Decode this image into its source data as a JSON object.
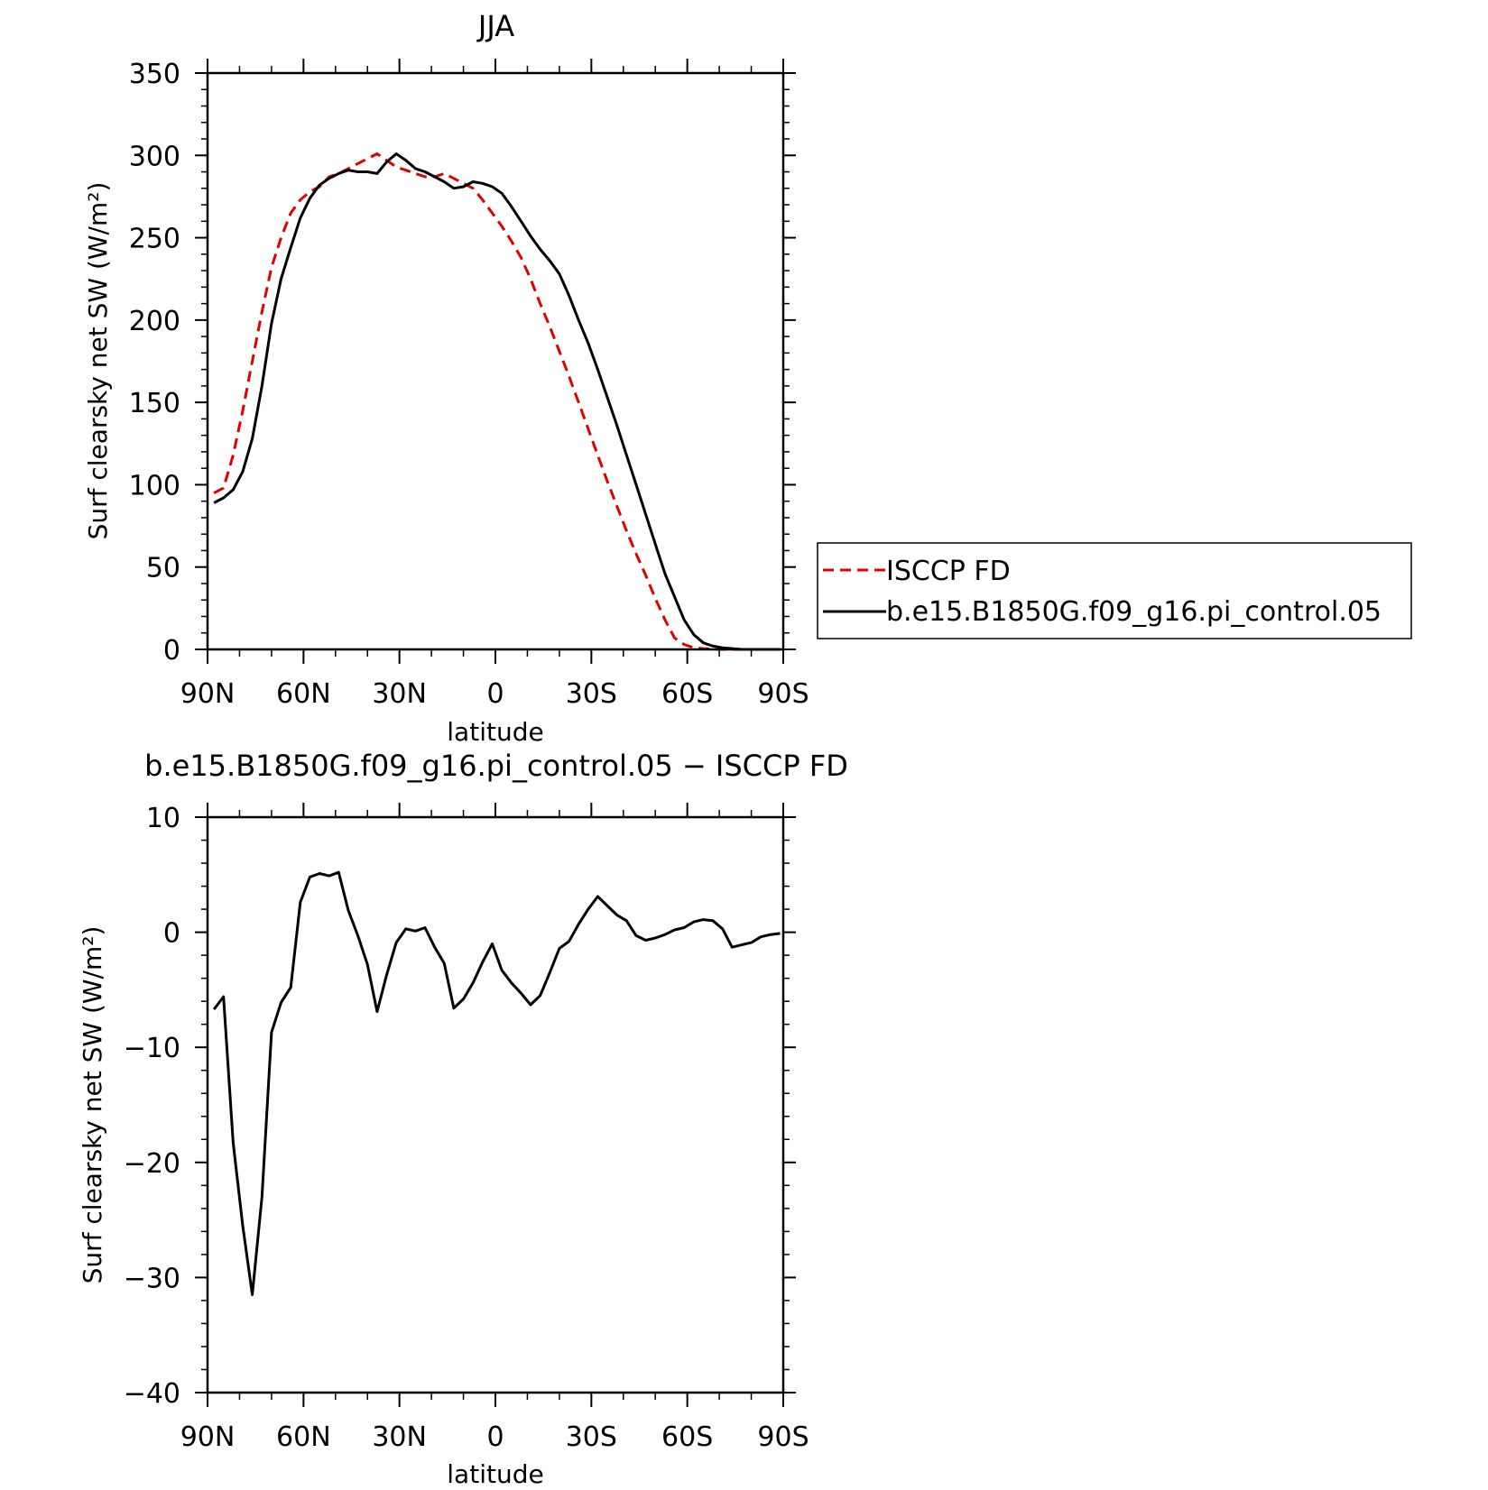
{
  "figure": {
    "top_panel": {
      "title": "JJA",
      "xlabel": "latitude",
      "ylabel_html": "Surf clearsky net SW (W/m²)",
      "ylim": [
        0,
        350
      ],
      "yticks": [
        "0",
        "50",
        "100",
        "150",
        "200",
        "250",
        "300",
        "350"
      ],
      "yticks_values": [
        0,
        50,
        100,
        150,
        200,
        250,
        300,
        350
      ],
      "xticks": [
        "90N",
        "60N",
        "30N",
        "0",
        "30S",
        "60S",
        "90S"
      ],
      "legend": {
        "items": [
          {
            "label": "ISCCP FD",
            "color": "#e00000",
            "style": "dashed"
          },
          {
            "label": "b.e15.B1850G.f09_g16.pi_control.05",
            "color": "#000000",
            "style": "solid"
          }
        ]
      }
    },
    "bottom_panel": {
      "title": "b.e15.B1850G.f09_g16.pi_control.05 − ISCCP FD",
      "xlabel": "latitude",
      "ylabel_html": "Surf clearsky net SW (W/m²)",
      "ylim": [
        -40,
        10
      ],
      "yticks": [
        "10",
        "0",
        "−10",
        "−20",
        "−30",
        "−40"
      ],
      "yticks_values": [
        10,
        0,
        -10,
        -20,
        -30,
        -40
      ],
      "xticks": [
        "90N",
        "60N",
        "30N",
        "0",
        "30S",
        "60S",
        "90S"
      ]
    }
  },
  "chart_data": [
    {
      "type": "line",
      "title": "JJA",
      "xlabel": "latitude",
      "ylabel": "Surf clearsky net SW (W/m²)",
      "xlim": [
        90,
        -90
      ],
      "ylim": [
        0,
        350
      ],
      "grid": false,
      "legend_position": "right",
      "series": [
        {
          "name": "ISCCP FD",
          "color": "#e00000",
          "dash": true,
          "x": [
            88,
            85,
            82,
            79,
            76,
            73,
            70,
            67,
            64,
            61,
            58,
            55,
            52,
            49,
            46,
            43,
            40,
            37,
            34,
            31,
            28,
            25,
            22,
            19,
            16,
            13,
            10,
            7,
            4,
            1,
            -2,
            -5,
            -8,
            -11,
            -14,
            -17,
            -20,
            -23,
            -26,
            -29,
            -32,
            -35,
            -38,
            -41,
            -44,
            -47,
            -50,
            -53,
            -56,
            -59,
            -62,
            -65,
            -68,
            -71,
            -74,
            -77,
            -80,
            -83,
            -86,
            -89
          ],
          "y": [
            95,
            98,
            118,
            145,
            175,
            205,
            232,
            250,
            265,
            273,
            278,
            281,
            287,
            289,
            292,
            295,
            298,
            301,
            297,
            293,
            291,
            289,
            287,
            287,
            289,
            286,
            283,
            280,
            273,
            265,
            257,
            248,
            238,
            225,
            210,
            196,
            181,
            166,
            150,
            134,
            118,
            102,
            87,
            72,
            58,
            45,
            31,
            18,
            7,
            3,
            1,
            0.5,
            0.2,
            0,
            0,
            0,
            0,
            0,
            0,
            0
          ]
        },
        {
          "name": "b.e15.B1850G.f09_g16.pi_control.05",
          "color": "#000000",
          "dash": false,
          "x": [
            88,
            85,
            82,
            79,
            76,
            73,
            70,
            67,
            64,
            61,
            58,
            55,
            52,
            49,
            46,
            43,
            40,
            37,
            34,
            31,
            28,
            25,
            22,
            19,
            16,
            13,
            10,
            7,
            4,
            1,
            -2,
            -5,
            -8,
            -11,
            -14,
            -17,
            -20,
            -23,
            -26,
            -29,
            -32,
            -35,
            -38,
            -41,
            -44,
            -47,
            -50,
            -53,
            -56,
            -59,
            -62,
            -65,
            -68,
            -71,
            -74,
            -77,
            -80,
            -83,
            -86,
            -89
          ],
          "y": [
            89,
            92,
            97,
            108,
            128,
            160,
            198,
            225,
            244,
            262,
            274,
            282,
            286,
            289,
            291,
            290,
            290,
            289,
            296,
            301,
            297,
            292,
            290,
            287,
            284,
            280,
            281,
            284,
            283,
            281,
            277,
            269,
            260,
            251,
            243,
            236,
            228,
            215,
            200,
            186,
            170,
            153,
            136,
            118,
            100,
            82,
            64,
            46,
            32,
            18,
            9,
            4,
            2,
            1,
            0.5,
            0,
            0,
            0,
            0,
            0
          ]
        }
      ]
    },
    {
      "type": "line",
      "title": "b.e15.B1850G.f09_g16.pi_control.05 − ISCCP FD",
      "xlabel": "latitude",
      "ylabel": "Surf clearsky net SW (W/m²)",
      "xlim": [
        90,
        -90
      ],
      "ylim": [
        -40,
        10
      ],
      "grid": false,
      "series": [
        {
          "color": "#000000",
          "dash": false,
          "x": [
            88,
            85,
            82,
            79,
            76,
            73,
            70,
            67,
            64,
            61,
            58,
            55,
            52,
            49,
            46,
            43,
            40,
            37,
            34,
            31,
            28,
            25,
            22,
            19,
            16,
            13,
            10,
            7,
            4,
            1,
            -2,
            -5,
            -8,
            -11,
            -14,
            -17,
            -20,
            -23,
            -26,
            -29,
            -32,
            -35,
            -38,
            -41,
            -44,
            -47,
            -50,
            -53,
            -56,
            -59,
            -62,
            -65,
            -68,
            -71,
            -74,
            -77,
            -80,
            -83,
            -86,
            -89
          ],
          "y": [
            -6.7,
            -5.6,
            -18.3,
            -25.5,
            -31.5,
            -23.0,
            -8.7,
            -6.1,
            -4.8,
            2.6,
            4.8,
            5.1,
            4.9,
            5.2,
            1.9,
            -0.3,
            -2.8,
            -6.9,
            -3.7,
            -0.9,
            0.3,
            0.1,
            0.4,
            -1.3,
            -2.7,
            -6.6,
            -5.8,
            -4.4,
            -2.6,
            -1.0,
            -3.3,
            -4.4,
            -5.3,
            -6.3,
            -5.5,
            -3.5,
            -1.4,
            -0.8,
            0.7,
            2.0,
            3.1,
            2.3,
            1.5,
            1.0,
            -0.3,
            -0.7,
            -0.5,
            -0.2,
            0.2,
            0.4,
            0.9,
            1.1,
            1.0,
            0.3,
            -1.3,
            -1.1,
            -0.9,
            -0.4,
            -0.2,
            -0.1
          ]
        }
      ]
    }
  ]
}
